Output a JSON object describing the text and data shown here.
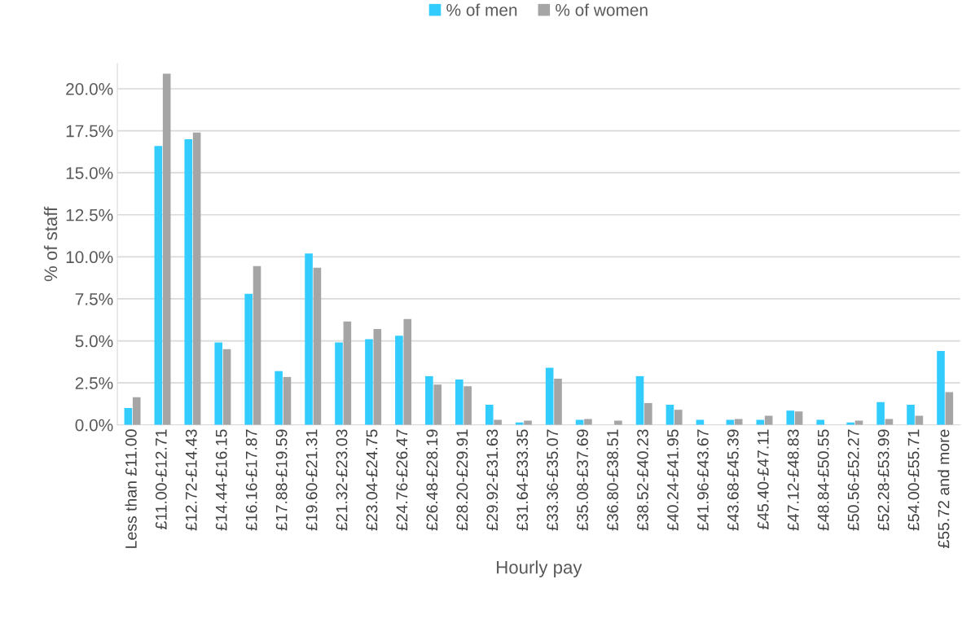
{
  "chart_data": {
    "type": "bar",
    "xlabel": "Hourly pay",
    "ylabel": "% of staff",
    "categories": [
      "Less than £11.00",
      "£11.00-£12.71",
      "£12.72-£14.43",
      "£14.44-£16.15",
      "£16.16-£17.87",
      "£17.88-£19.59",
      "£19.60-£21.31",
      "£21.32-£23.03",
      "£23.04-£24.75",
      "£24.76-£26.47",
      "£26.48-£28.19",
      "£28.20-£29.91",
      "£29.92-£31.63",
      "£31.64-£33.35",
      "£33.36-£35.07",
      "£35.08-£37.69",
      "£36.80-£38.51",
      "£38.52-£40.23",
      "£40.24-£41.95",
      "£41.96-£43.67",
      "£43.68-£45.39",
      "£45.40-£47.11",
      "£47.12-£48.83",
      "£48.84-£50.55",
      "£50.56-£52.27",
      "£52.28-£53.99",
      "£54.00-£55.71",
      "£55.72 and more"
    ],
    "series": [
      {
        "name": "% of men",
        "color": "#33ccff",
        "values": [
          1.0,
          16.6,
          17.0,
          4.9,
          7.8,
          3.2,
          10.2,
          4.9,
          5.1,
          5.3,
          2.9,
          2.7,
          1.2,
          0.15,
          3.4,
          0.3,
          0,
          2.9,
          1.2,
          0.3,
          0.3,
          0.3,
          0.85,
          0.3,
          0.15,
          1.35,
          1.2,
          4.4
        ]
      },
      {
        "name": "% of women",
        "color": "#a5a5a5",
        "values": [
          1.65,
          20.9,
          17.4,
          4.5,
          9.45,
          2.85,
          9.35,
          6.15,
          5.7,
          6.3,
          2.4,
          2.3,
          0.3,
          0.25,
          2.75,
          0.35,
          0.25,
          1.3,
          0.9,
          0,
          0.35,
          0.55,
          0.8,
          0,
          0.25,
          0.35,
          0.55,
          1.95
        ]
      }
    ],
    "ylim": [
      0,
      21.5
    ],
    "yticks": [
      {
        "value": 0,
        "label": "0.0%"
      },
      {
        "value": 2.5,
        "label": "2.5%"
      },
      {
        "value": 5,
        "label": "5.0%"
      },
      {
        "value": 7.5,
        "label": "7.5%"
      },
      {
        "value": 10,
        "label": "10.0%"
      },
      {
        "value": 12.5,
        "label": "12.5%"
      },
      {
        "value": 15,
        "label": "15.0%"
      },
      {
        "value": 17.5,
        "label": "17.5%"
      },
      {
        "value": 20,
        "label": "20.0%"
      }
    ],
    "grid": "y",
    "legend": "top"
  }
}
